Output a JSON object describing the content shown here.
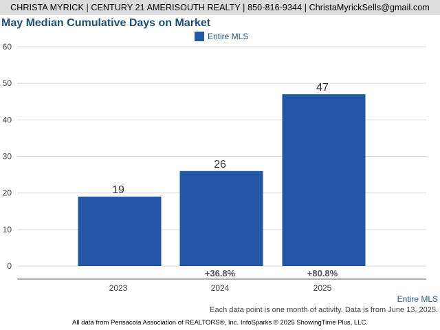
{
  "header": {
    "text": "CHRISTA MYRICK | CENTURY 21 AMERISOUTH REALTY | 850-816-9344 | ChristaMyrickSells@gmail.com"
  },
  "footer": {
    "legend_label": "Entire MLS",
    "note": "Each data point is one month of activity. Data is from June 13, 2025.",
    "attribution": "All data from Pensacola Association of REALTORS®, Inc. InfoSparks © 2025 ShowingTime Plus, LLC."
  },
  "colors": {
    "bar": "#2356a4",
    "title": "#1f4e79",
    "header_bg": "#dcdcdc"
  },
  "chart_data": {
    "type": "bar",
    "title": "May Median Cumulative Days on Market",
    "xlabel": "",
    "ylabel": "",
    "categories": [
      "2023",
      "2024",
      "2025"
    ],
    "series": [
      {
        "name": "Entire MLS",
        "values": [
          19,
          26,
          47
        ],
        "changes": [
          "",
          "+36.8%",
          "+80.8%"
        ]
      }
    ],
    "ylim": [
      0,
      60
    ],
    "yticks": [
      0,
      10,
      20,
      30,
      40,
      50,
      60
    ],
    "grid": true,
    "legend_position": "top-center"
  }
}
